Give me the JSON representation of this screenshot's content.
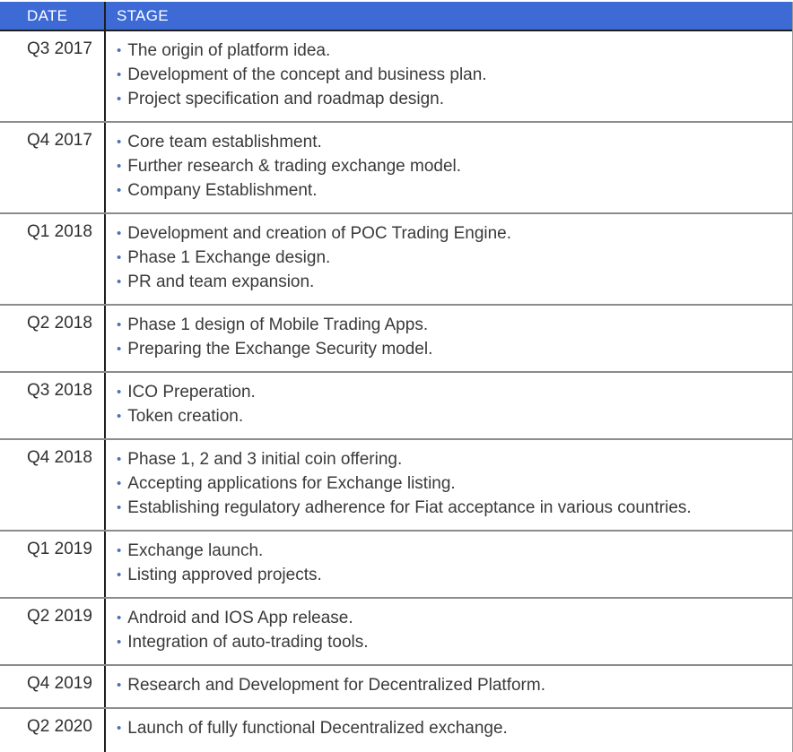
{
  "table": {
    "bullet_char": "•",
    "columns": [
      {
        "label": "DATE"
      },
      {
        "label": "STAGE"
      }
    ],
    "rows": [
      {
        "date": "Q3 2017",
        "items": [
          "The origin of platform idea.",
          "Development of the concept and business plan.",
          "Project specification and roadmap design."
        ]
      },
      {
        "date": "Q4 2017",
        "items": [
          "Core team establishment.",
          "Further research & trading exchange model.",
          "Company Establishment."
        ]
      },
      {
        "date": "Q1 2018",
        "items": [
          "Development and creation of POC Trading Engine.",
          "Phase 1 Exchange design.",
          "PR and team expansion."
        ]
      },
      {
        "date": "Q2 2018",
        "items": [
          "Phase 1 design of Mobile Trading Apps.",
          "Preparing the Exchange Security model."
        ]
      },
      {
        "date": "Q3 2018",
        "items": [
          "ICO Preperation.",
          "Token creation."
        ]
      },
      {
        "date": "Q4 2018",
        "items": [
          "Phase 1, 2 and 3 initial coin offering.",
          "Accepting applications for Exchange listing.",
          "Establishing regulatory adherence for Fiat acceptance in various countries."
        ]
      },
      {
        "date": "Q1 2019",
        "items": [
          "Exchange launch.",
          "Listing approved projects."
        ]
      },
      {
        "date": "Q2 2019",
        "items": [
          "Android and IOS App release.",
          "Integration of auto-trading tools."
        ]
      },
      {
        "date": "Q4 2019",
        "items": [
          "Research and Development for Decentralized Platform."
        ]
      },
      {
        "date": "Q2 2020",
        "items": [
          "Launch of fully functional Decentralized exchange."
        ]
      }
    ],
    "colors": {
      "header_bg": "#3D6AD4",
      "header_text": "#FFFFFF",
      "bullet": "#4A72B8",
      "body_text": "#3A3A3A",
      "date_text": "#303030",
      "dark_line": "#1E1E1E",
      "row_separator": "#8C8C8C"
    }
  }
}
